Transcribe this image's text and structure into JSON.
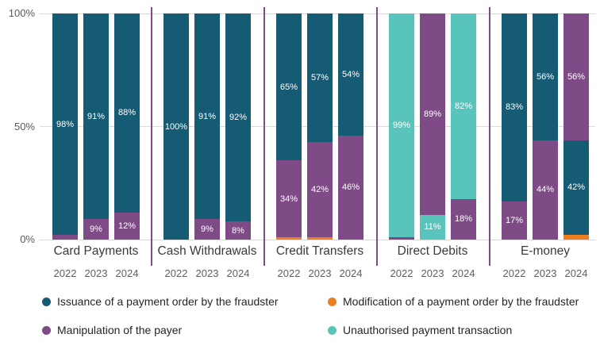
{
  "chart_data": {
    "type": "bar",
    "variant": "stacked-percent",
    "title": "",
    "xlabel": "",
    "ylabel": "",
    "ylim": [
      0,
      100
    ],
    "unit": "%",
    "legend_position": "bottom",
    "grid": "horizontal",
    "y_axis": {
      "max": 100,
      "ticks": [
        {
          "label": "100%",
          "value": 100
        },
        {
          "label": "50%",
          "value": 50
        },
        {
          "label": "0%",
          "value": 0
        }
      ]
    },
    "series": {
      "issuance": {
        "name": "Issuance of a payment order by the fraudster",
        "color": "#155b73"
      },
      "modification": {
        "name": "Modification of a payment order by the fraudster",
        "color": "#ee7f1f"
      },
      "manipulation": {
        "name": "Manipulation of the payer",
        "color": "#7e4b87"
      },
      "unauthorised": {
        "name": "Unauthorised payment transaction",
        "color": "#59c4bc"
      }
    },
    "groups": [
      {
        "label": "Card Payments",
        "bars": [
          {
            "year": "2022",
            "segments": [
              {
                "series": "issuance",
                "value": 98,
                "label": "98%"
              },
              {
                "series": "manipulation",
                "value": 2
              }
            ]
          },
          {
            "year": "2023",
            "segments": [
              {
                "series": "issuance",
                "value": 91,
                "label": "91%"
              },
              {
                "series": "manipulation",
                "value": 9,
                "label": "9%"
              }
            ]
          },
          {
            "year": "2024",
            "segments": [
              {
                "series": "issuance",
                "value": 88,
                "label": "88%"
              },
              {
                "series": "manipulation",
                "value": 12,
                "label": "12%"
              }
            ]
          }
        ]
      },
      {
        "label": "Cash Withdrawals",
        "bars": [
          {
            "year": "2022",
            "segments": [
              {
                "series": "issuance",
                "value": 100,
                "label": "100%"
              }
            ]
          },
          {
            "year": "2023",
            "segments": [
              {
                "series": "issuance",
                "value": 91,
                "label": "91%"
              },
              {
                "series": "manipulation",
                "value": 9,
                "label": "9%"
              }
            ]
          },
          {
            "year": "2024",
            "segments": [
              {
                "series": "issuance",
                "value": 92,
                "label": "92%"
              },
              {
                "series": "manipulation",
                "value": 8,
                "label": "8%"
              }
            ]
          }
        ]
      },
      {
        "label": "Credit Transfers",
        "bars": [
          {
            "year": "2022",
            "segments": [
              {
                "series": "issuance",
                "value": 65,
                "label": "65%"
              },
              {
                "series": "manipulation",
                "value": 34,
                "label": "34%"
              },
              {
                "series": "modification",
                "value": 1
              }
            ]
          },
          {
            "year": "2023",
            "segments": [
              {
                "series": "issuance",
                "value": 57,
                "label": "57%"
              },
              {
                "series": "manipulation",
                "value": 42,
                "label": "42%"
              },
              {
                "series": "modification",
                "value": 1
              }
            ]
          },
          {
            "year": "2024",
            "segments": [
              {
                "series": "issuance",
                "value": 54,
                "label": "54%"
              },
              {
                "series": "manipulation",
                "value": 46,
                "label": "46%"
              }
            ]
          }
        ]
      },
      {
        "label": "Direct Debits",
        "bars": [
          {
            "year": "2022",
            "segments": [
              {
                "series": "unauthorised",
                "value": 99,
                "label": "99%"
              },
              {
                "series": "manipulation",
                "value": 1
              }
            ]
          },
          {
            "year": "2023",
            "segments": [
              {
                "series": "manipulation",
                "value": 89,
                "label": "89%"
              },
              {
                "series": "unauthorised",
                "value": 11,
                "label": "11%"
              }
            ]
          },
          {
            "year": "2024",
            "segments": [
              {
                "series": "unauthorised",
                "value": 82,
                "label": "82%"
              },
              {
                "series": "manipulation",
                "value": 18,
                "label": "18%"
              }
            ]
          }
        ]
      },
      {
        "label": "E-money",
        "bars": [
          {
            "year": "2022",
            "segments": [
              {
                "series": "issuance",
                "value": 83,
                "label": "83%"
              },
              {
                "series": "manipulation",
                "value": 17,
                "label": "17%"
              }
            ]
          },
          {
            "year": "2023",
            "segments": [
              {
                "series": "issuance",
                "value": 56,
                "label": "56%"
              },
              {
                "series": "manipulation",
                "value": 44,
                "label": "44%"
              }
            ]
          },
          {
            "year": "2024",
            "segments": [
              {
                "series": "manipulation",
                "value": 56,
                "label": "56%"
              },
              {
                "series": "issuance",
                "value": 42,
                "label": "42%"
              },
              {
                "series": "modification",
                "value": 2
              }
            ]
          }
        ]
      }
    ],
    "legend": [
      {
        "series": "issuance",
        "label": "Issuance of a payment order by the fraudster"
      },
      {
        "series": "modification",
        "label": "Modification of a payment order by the fraudster"
      },
      {
        "series": "manipulation",
        "label": "Manipulation of the payer"
      },
      {
        "series": "unauthorised",
        "label": "Unauthorised payment transaction"
      }
    ]
  }
}
